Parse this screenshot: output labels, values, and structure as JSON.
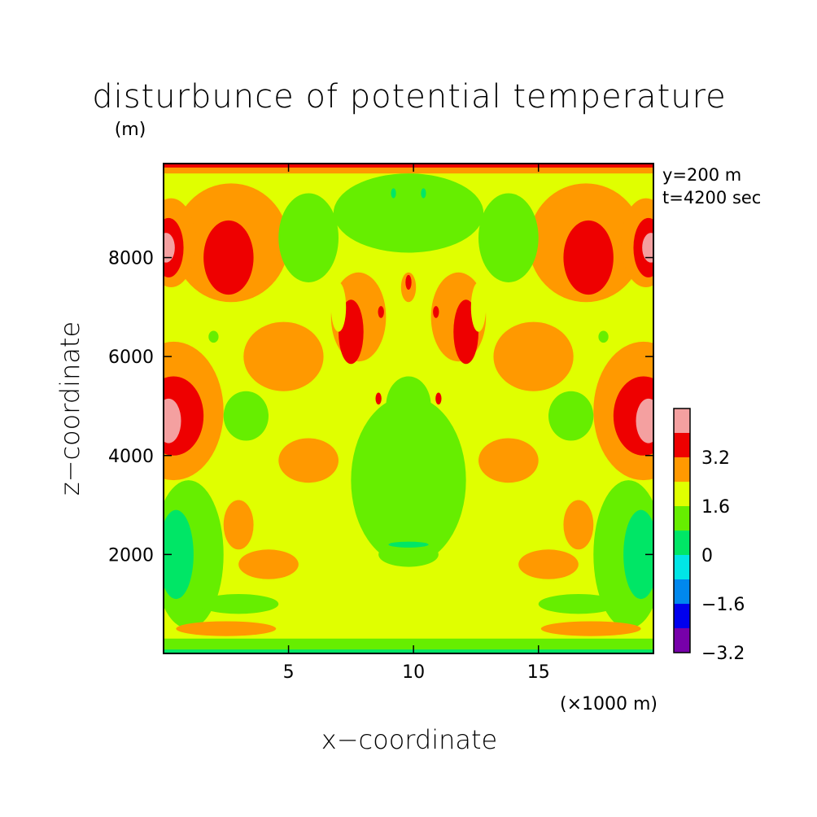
{
  "chart_data": {
    "type": "heatmap",
    "title": "disturbunce of potential temperature",
    "title_unit": "(m)",
    "annotations": [
      "y=200 m",
      "t=4200 sec"
    ],
    "xlabel": "x−coordinate",
    "x_unit": "(×1000 m)",
    "ylabel": "z−coordinate",
    "xlim": [
      0,
      19.6
    ],
    "ylim": [
      0,
      9900
    ],
    "x_ticks": [
      {
        "value": 5,
        "label": "5"
      },
      {
        "value": 10,
        "label": "10"
      },
      {
        "value": 15,
        "label": "15"
      }
    ],
    "y_ticks": [
      {
        "value": 2000,
        "label": "2000"
      },
      {
        "value": 4000,
        "label": "4000"
      },
      {
        "value": 6000,
        "label": "6000"
      },
      {
        "value": 8000,
        "label": "8000"
      }
    ],
    "colorbar": {
      "levels": [
        {
          "from": 4.0,
          "to": 4.8,
          "color": "#f4a0a0"
        },
        {
          "from": 3.2,
          "to": 4.0,
          "color": "#ee0000"
        },
        {
          "from": 2.4,
          "to": 3.2,
          "color": "#ff9900"
        },
        {
          "from": 1.6,
          "to": 2.4,
          "color": "#e0ff00"
        },
        {
          "from": 0.8,
          "to": 1.6,
          "color": "#66ee00"
        },
        {
          "from": 0.0,
          "to": 0.8,
          "color": "#00e666"
        },
        {
          "from": -0.8,
          "to": 0.0,
          "color": "#00e6e6"
        },
        {
          "from": -1.6,
          "to": -0.8,
          "color": "#0088ee"
        },
        {
          "from": -2.4,
          "to": -1.6,
          "color": "#0000ee"
        },
        {
          "from": -3.2,
          "to": -2.4,
          "color": "#7700aa"
        }
      ],
      "tick_labels": [
        {
          "value": 3.2,
          "label": "3.2"
        },
        {
          "value": 1.6,
          "label": "1.6"
        },
        {
          "value": 0,
          "label": "0"
        },
        {
          "value": -1.6,
          "label": "−1.6"
        },
        {
          "value": -3.2,
          "label": "−3.2"
        }
      ]
    },
    "regions": [
      {
        "field": "background",
        "color": "#e0ff00"
      },
      {
        "kind": "rect",
        "x": [
          0,
          19.6
        ],
        "y": [
          9700,
          9900
        ],
        "color": "#ff9900"
      },
      {
        "kind": "rect",
        "x": [
          0,
          19.6
        ],
        "y": [
          9820,
          9900
        ],
        "color": "#ee0000"
      },
      {
        "kind": "rect",
        "x": [
          0,
          19.6
        ],
        "y": [
          0,
          300
        ],
        "color": "#66ee00"
      },
      {
        "kind": "rect",
        "x": [
          0,
          19.6
        ],
        "y": [
          0,
          80
        ],
        "color": "#00e666"
      },
      {
        "kind": "ellipse",
        "cx": 2.7,
        "cy": 8300,
        "rx": 2.3,
        "ry": 1200,
        "color": "#ff9900"
      },
      {
        "kind": "ellipse",
        "cx": 2.6,
        "cy": 8000,
        "rx": 1.0,
        "ry": 750,
        "color": "#ee0000"
      },
      {
        "kind": "ellipse",
        "cx": 16.9,
        "cy": 8300,
        "rx": 2.3,
        "ry": 1200,
        "color": "#ff9900"
      },
      {
        "kind": "ellipse",
        "cx": 17.0,
        "cy": 8000,
        "rx": 1.0,
        "ry": 750,
        "color": "#ee0000"
      },
      {
        "kind": "ellipse",
        "cx": 0.3,
        "cy": 8300,
        "rx": 1.0,
        "ry": 900,
        "color": "#ff9900"
      },
      {
        "kind": "ellipse",
        "cx": 0.2,
        "cy": 8200,
        "rx": 0.6,
        "ry": 600,
        "color": "#ee0000"
      },
      {
        "kind": "ellipse",
        "cx": 0.1,
        "cy": 8200,
        "rx": 0.35,
        "ry": 300,
        "color": "#f4a0a0"
      },
      {
        "kind": "ellipse",
        "cx": 19.3,
        "cy": 8300,
        "rx": 1.0,
        "ry": 900,
        "color": "#ff9900"
      },
      {
        "kind": "ellipse",
        "cx": 19.4,
        "cy": 8200,
        "rx": 0.6,
        "ry": 600,
        "color": "#ee0000"
      },
      {
        "kind": "ellipse",
        "cx": 19.5,
        "cy": 8200,
        "rx": 0.35,
        "ry": 300,
        "color": "#f4a0a0"
      },
      {
        "kind": "ellipse",
        "cx": 0.4,
        "cy": 4900,
        "rx": 2.0,
        "ry": 1400,
        "color": "#ff9900"
      },
      {
        "kind": "ellipse",
        "cx": 0.4,
        "cy": 4800,
        "rx": 1.2,
        "ry": 800,
        "color": "#ee0000"
      },
      {
        "kind": "ellipse",
        "cx": 0.2,
        "cy": 4700,
        "rx": 0.5,
        "ry": 450,
        "color": "#f4a0a0"
      },
      {
        "kind": "ellipse",
        "cx": 19.2,
        "cy": 4900,
        "rx": 2.0,
        "ry": 1400,
        "color": "#ff9900"
      },
      {
        "kind": "ellipse",
        "cx": 19.2,
        "cy": 4800,
        "rx": 1.2,
        "ry": 800,
        "color": "#ee0000"
      },
      {
        "kind": "ellipse",
        "cx": 19.4,
        "cy": 4700,
        "rx": 0.5,
        "ry": 450,
        "color": "#f4a0a0"
      },
      {
        "kind": "ellipse",
        "cx": 9.8,
        "cy": 3500,
        "rx": 2.3,
        "ry": 1700,
        "color": "#66ee00"
      },
      {
        "kind": "ellipse",
        "cx": 9.8,
        "cy": 5000,
        "rx": 0.9,
        "ry": 600,
        "color": "#66ee00"
      },
      {
        "kind": "ellipse",
        "cx": 5.8,
        "cy": 8400,
        "rx": 1.2,
        "ry": 900,
        "color": "#66ee00"
      },
      {
        "kind": "ellipse",
        "cx": 13.8,
        "cy": 8400,
        "rx": 1.2,
        "ry": 900,
        "color": "#66ee00"
      },
      {
        "kind": "ellipse",
        "cx": 9.8,
        "cy": 8900,
        "rx": 3.0,
        "ry": 800,
        "color": "#66ee00"
      },
      {
        "kind": "ellipse",
        "cx": 9.8,
        "cy": 7200,
        "rx": 0.5,
        "ry": 700,
        "color": "#e0ff00"
      },
      {
        "kind": "ellipse",
        "cx": 9.8,
        "cy": 7400,
        "rx": 0.3,
        "ry": 300,
        "color": "#ff9900"
      },
      {
        "kind": "ellipse",
        "cx": 9.8,
        "cy": 7500,
        "rx": 0.12,
        "ry": 150,
        "color": "#ee0000"
      },
      {
        "kind": "ellipse",
        "cx": 7.8,
        "cy": 6800,
        "rx": 1.1,
        "ry": 900,
        "color": "#ff9900"
      },
      {
        "kind": "ellipse",
        "cx": 11.8,
        "cy": 6800,
        "rx": 1.1,
        "ry": 900,
        "color": "#ff9900"
      },
      {
        "kind": "ellipse",
        "cx": 7.5,
        "cy": 6500,
        "rx": 0.5,
        "ry": 650,
        "color": "#ee0000"
      },
      {
        "kind": "ellipse",
        "cx": 12.1,
        "cy": 6500,
        "rx": 0.5,
        "ry": 650,
        "color": "#ee0000"
      },
      {
        "kind": "ellipse",
        "cx": 4.8,
        "cy": 6000,
        "rx": 1.6,
        "ry": 700,
        "color": "#ff9900"
      },
      {
        "kind": "ellipse",
        "cx": 14.8,
        "cy": 6000,
        "rx": 1.6,
        "ry": 700,
        "color": "#ff9900"
      },
      {
        "kind": "ellipse",
        "cx": 5.8,
        "cy": 3900,
        "rx": 1.2,
        "ry": 450,
        "color": "#ff9900"
      },
      {
        "kind": "ellipse",
        "cx": 13.8,
        "cy": 3900,
        "rx": 1.2,
        "ry": 450,
        "color": "#ff9900"
      },
      {
        "kind": "ellipse",
        "cx": 3.3,
        "cy": 4800,
        "rx": 0.9,
        "ry": 500,
        "color": "#66ee00"
      },
      {
        "kind": "ellipse",
        "cx": 16.3,
        "cy": 4800,
        "rx": 0.9,
        "ry": 500,
        "color": "#66ee00"
      },
      {
        "kind": "ellipse",
        "cx": 1.0,
        "cy": 2000,
        "rx": 1.4,
        "ry": 1500,
        "color": "#66ee00"
      },
      {
        "kind": "ellipse",
        "cx": 0.5,
        "cy": 2000,
        "rx": 0.7,
        "ry": 900,
        "color": "#00e666"
      },
      {
        "kind": "ellipse",
        "cx": 18.6,
        "cy": 2000,
        "rx": 1.4,
        "ry": 1500,
        "color": "#66ee00"
      },
      {
        "kind": "ellipse",
        "cx": 19.1,
        "cy": 2000,
        "rx": 0.7,
        "ry": 900,
        "color": "#00e666"
      },
      {
        "kind": "ellipse",
        "cx": 3.0,
        "cy": 2600,
        "rx": 0.6,
        "ry": 500,
        "color": "#ff9900"
      },
      {
        "kind": "ellipse",
        "cx": 16.6,
        "cy": 2600,
        "rx": 0.6,
        "ry": 500,
        "color": "#ff9900"
      },
      {
        "kind": "ellipse",
        "cx": 4.2,
        "cy": 1800,
        "rx": 1.2,
        "ry": 300,
        "color": "#ff9900"
      },
      {
        "kind": "ellipse",
        "cx": 15.4,
        "cy": 1800,
        "rx": 1.2,
        "ry": 300,
        "color": "#ff9900"
      },
      {
        "kind": "ellipse",
        "cx": 9.8,
        "cy": 2000,
        "rx": 1.2,
        "ry": 250,
        "color": "#66ee00"
      },
      {
        "kind": "ellipse",
        "cx": 9.8,
        "cy": 2200,
        "rx": 0.8,
        "ry": 60,
        "color": "#00e666"
      },
      {
        "kind": "ellipse",
        "cx": 3.0,
        "cy": 1000,
        "rx": 1.6,
        "ry": 200,
        "color": "#66ee00"
      },
      {
        "kind": "ellipse",
        "cx": 16.6,
        "cy": 1000,
        "rx": 1.6,
        "ry": 200,
        "color": "#66ee00"
      },
      {
        "kind": "ellipse",
        "cx": 2.5,
        "cy": 500,
        "rx": 2.0,
        "ry": 150,
        "color": "#ff9900"
      },
      {
        "kind": "ellipse",
        "cx": 17.1,
        "cy": 500,
        "rx": 2.0,
        "ry": 150,
        "color": "#ff9900"
      },
      {
        "kind": "ellipse",
        "cx": 7.0,
        "cy": 7000,
        "rx": 0.3,
        "ry": 500,
        "color": "#e0ff00"
      },
      {
        "kind": "ellipse",
        "cx": 12.6,
        "cy": 7000,
        "rx": 0.3,
        "ry": 500,
        "color": "#e0ff00"
      },
      {
        "kind": "ellipse",
        "cx": 8.7,
        "cy": 6900,
        "rx": 0.12,
        "ry": 120,
        "color": "#ee0000"
      },
      {
        "kind": "ellipse",
        "cx": 10.9,
        "cy": 6900,
        "rx": 0.12,
        "ry": 120,
        "color": "#ee0000"
      },
      {
        "kind": "ellipse",
        "cx": 8.6,
        "cy": 5150,
        "rx": 0.12,
        "ry": 120,
        "color": "#ee0000"
      },
      {
        "kind": "ellipse",
        "cx": 11.0,
        "cy": 5150,
        "rx": 0.12,
        "ry": 120,
        "color": "#ee0000"
      },
      {
        "kind": "ellipse",
        "cx": 9.2,
        "cy": 9300,
        "rx": 0.1,
        "ry": 100,
        "color": "#00e666"
      },
      {
        "kind": "ellipse",
        "cx": 10.4,
        "cy": 9300,
        "rx": 0.1,
        "ry": 100,
        "color": "#00e666"
      },
      {
        "kind": "ellipse",
        "cx": 2.0,
        "cy": 6400,
        "rx": 0.2,
        "ry": 120,
        "color": "#66ee00"
      },
      {
        "kind": "ellipse",
        "cx": 17.6,
        "cy": 6400,
        "rx": 0.2,
        "ry": 120,
        "color": "#66ee00"
      }
    ]
  }
}
